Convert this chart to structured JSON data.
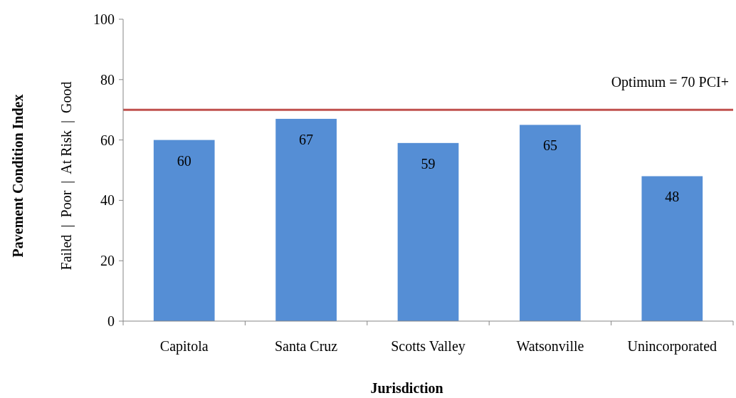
{
  "chart_data": {
    "type": "bar",
    "xlabel": "Jurisdiction",
    "ylabel": "Pavement Condition Index",
    "annotations": [
      "Failed  |  Poor  |  At Risk  |  Good"
    ],
    "categories": [
      "Capitola",
      "Santa Cruz",
      "Scotts Valley",
      "Watsonville",
      "Unincorporated"
    ],
    "values": [
      60,
      67,
      59,
      65,
      48
    ],
    "color": "#558ed5",
    "data_labels": true,
    "ylim": [
      0,
      100
    ],
    "yticks": [
      0,
      20,
      40,
      60,
      80,
      100
    ],
    "grid": false,
    "ref_lines": [
      {
        "axis": "y",
        "value": 70,
        "label": "Optimum = 70 PCI+",
        "color": "#c0504d"
      }
    ]
  }
}
